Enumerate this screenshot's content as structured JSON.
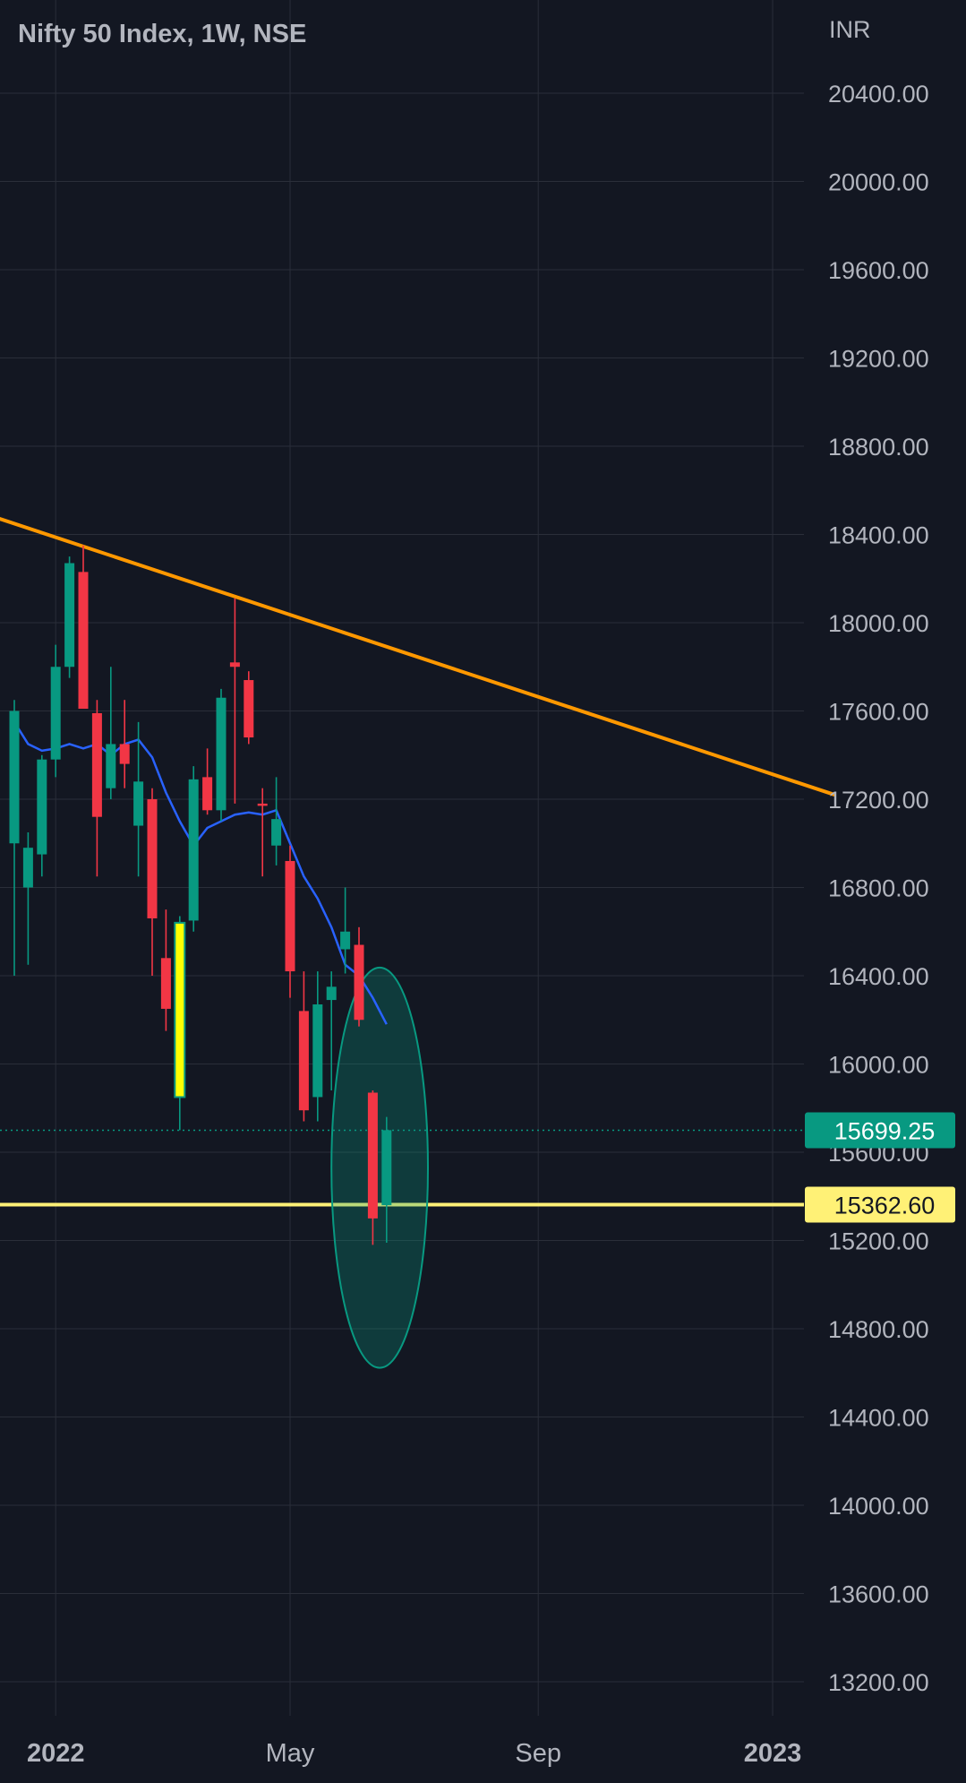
{
  "header": {
    "title": "Nifty 50 Index, 1W, NSE"
  },
  "chart_data": {
    "type": "candlestick",
    "title": "Nifty 50 Index, 1W, NSE",
    "currency": "INR",
    "ylim": [
      13050,
      20600
    ],
    "y_ticks": [
      "20400.00",
      "20000.00",
      "19600.00",
      "19200.00",
      "18800.00",
      "18400.00",
      "18000.00",
      "17600.00",
      "17200.00",
      "16800.00",
      "16400.00",
      "16000.00",
      "15600.00",
      "15200.00",
      "14800.00",
      "14400.00",
      "14000.00",
      "13600.00",
      "13200.00"
    ],
    "x_ticks": [
      {
        "label": "2022",
        "week": 3,
        "bold": true
      },
      {
        "label": "May",
        "week": 20,
        "bold": false
      },
      {
        "label": "Sep",
        "week": 38,
        "bold": false
      },
      {
        "label": "2023",
        "week": 55,
        "bold": true
      }
    ],
    "weeks_visible": [
      0,
      59.5
    ],
    "candles": [
      {
        "w": 0,
        "o": 17000,
        "h": 17650,
        "l": 16400,
        "c": 17600
      },
      {
        "w": 1,
        "o": 16800,
        "h": 17050,
        "l": 16450,
        "c": 16980
      },
      {
        "w": 2,
        "o": 16950,
        "h": 17400,
        "l": 16850,
        "c": 17380
      },
      {
        "w": 3,
        "o": 17380,
        "h": 17900,
        "l": 17300,
        "c": 17800
      },
      {
        "w": 4,
        "o": 17800,
        "h": 18300,
        "l": 17750,
        "c": 18270
      },
      {
        "w": 5,
        "o": 18230,
        "h": 18350,
        "l": 17650,
        "c": 17610
      },
      {
        "w": 6,
        "o": 17590,
        "h": 17650,
        "l": 16850,
        "c": 17120
      },
      {
        "w": 7,
        "o": 17250,
        "h": 17800,
        "l": 17200,
        "c": 17450
      },
      {
        "w": 8,
        "o": 17450,
        "h": 17650,
        "l": 17250,
        "c": 17360
      },
      {
        "w": 9,
        "o": 17080,
        "h": 17550,
        "l": 16850,
        "c": 17280
      },
      {
        "w": 10,
        "o": 17200,
        "h": 17250,
        "l": 16400,
        "c": 16660
      },
      {
        "w": 11,
        "o": 16480,
        "h": 16700,
        "l": 16150,
        "c": 16250
      },
      {
        "w": 12,
        "o": 15850,
        "h": 16670,
        "l": 15700,
        "c": 16640,
        "highlight": true
      },
      {
        "w": 13,
        "o": 16650,
        "h": 17350,
        "l": 16600,
        "c": 17290
      },
      {
        "w": 14,
        "o": 17300,
        "h": 17430,
        "l": 17130,
        "c": 17150
      },
      {
        "w": 15,
        "o": 17150,
        "h": 17700,
        "l": 17100,
        "c": 17660
      },
      {
        "w": 16,
        "o": 17820,
        "h": 18110,
        "l": 17180,
        "c": 17800
      },
      {
        "w": 17,
        "o": 17740,
        "h": 17780,
        "l": 17450,
        "c": 17480
      },
      {
        "w": 18,
        "o": 17180,
        "h": 17250,
        "l": 16850,
        "c": 17170
      },
      {
        "w": 19,
        "o": 16990,
        "h": 17300,
        "l": 16900,
        "c": 17110
      },
      {
        "w": 20,
        "o": 16920,
        "h": 16990,
        "l": 16300,
        "c": 16420
      },
      {
        "w": 21,
        "o": 16240,
        "h": 16420,
        "l": 15740,
        "c": 15790
      },
      {
        "w": 22,
        "o": 15850,
        "h": 16420,
        "l": 15740,
        "c": 16270
      },
      {
        "w": 23,
        "o": 16290,
        "h": 16420,
        "l": 15880,
        "c": 16350
      },
      {
        "w": 24,
        "o": 16520,
        "h": 16800,
        "l": 16410,
        "c": 16600
      },
      {
        "w": 25,
        "o": 16540,
        "h": 16620,
        "l": 16170,
        "c": 16200
      },
      {
        "w": 26,
        "o": 15870,
        "h": 15880,
        "l": 15180,
        "c": 15300
      },
      {
        "w": 27,
        "o": 15360,
        "h": 15760,
        "l": 15190,
        "c": 15700
      }
    ],
    "ma_line": [
      {
        "w": 0,
        "v": 17550
      },
      {
        "w": 1,
        "v": 17450
      },
      {
        "w": 2,
        "v": 17420
      },
      {
        "w": 3,
        "v": 17430
      },
      {
        "w": 4,
        "v": 17450
      },
      {
        "w": 5,
        "v": 17430
      },
      {
        "w": 6,
        "v": 17450
      },
      {
        "w": 7,
        "v": 17400
      },
      {
        "w": 8,
        "v": 17450
      },
      {
        "w": 9,
        "v": 17470
      },
      {
        "w": 10,
        "v": 17390
      },
      {
        "w": 11,
        "v": 17230
      },
      {
        "w": 12,
        "v": 17100
      },
      {
        "w": 13,
        "v": 16990
      },
      {
        "w": 14,
        "v": 17070
      },
      {
        "w": 15,
        "v": 17100
      },
      {
        "w": 16,
        "v": 17130
      },
      {
        "w": 17,
        "v": 17140
      },
      {
        "w": 18,
        "v": 17130
      },
      {
        "w": 19,
        "v": 17150
      },
      {
        "w": 20,
        "v": 17000
      },
      {
        "w": 21,
        "v": 16850
      },
      {
        "w": 22,
        "v": 16750
      },
      {
        "w": 23,
        "v": 16620
      },
      {
        "w": 24,
        "v": 16450
      },
      {
        "w": 25,
        "v": 16400
      },
      {
        "w": 26,
        "v": 16300
      },
      {
        "w": 27,
        "v": 16180
      }
    ],
    "trendline": {
      "color": "#ff9800",
      "from": {
        "w": -1.5,
        "v": 18480
      },
      "to": {
        "w": 59.5,
        "v": 17220
      }
    },
    "support_line": {
      "value": 15362.6,
      "label": "15362.60",
      "color": "#fff176"
    },
    "last_price": {
      "value": 15699.25,
      "label": "15699.25",
      "color": "#089981"
    },
    "ellipse": {
      "center_w": 26.5,
      "center_v": 15530,
      "radius_w": 3.5,
      "radius_v": 420
    },
    "colors": {
      "up": "#089981",
      "down": "#f23645",
      "highlight": "#ffff00",
      "ma": "#2962ff",
      "grid": "#2a2e39",
      "background": "#131722",
      "text": "#b2b5be"
    }
  }
}
